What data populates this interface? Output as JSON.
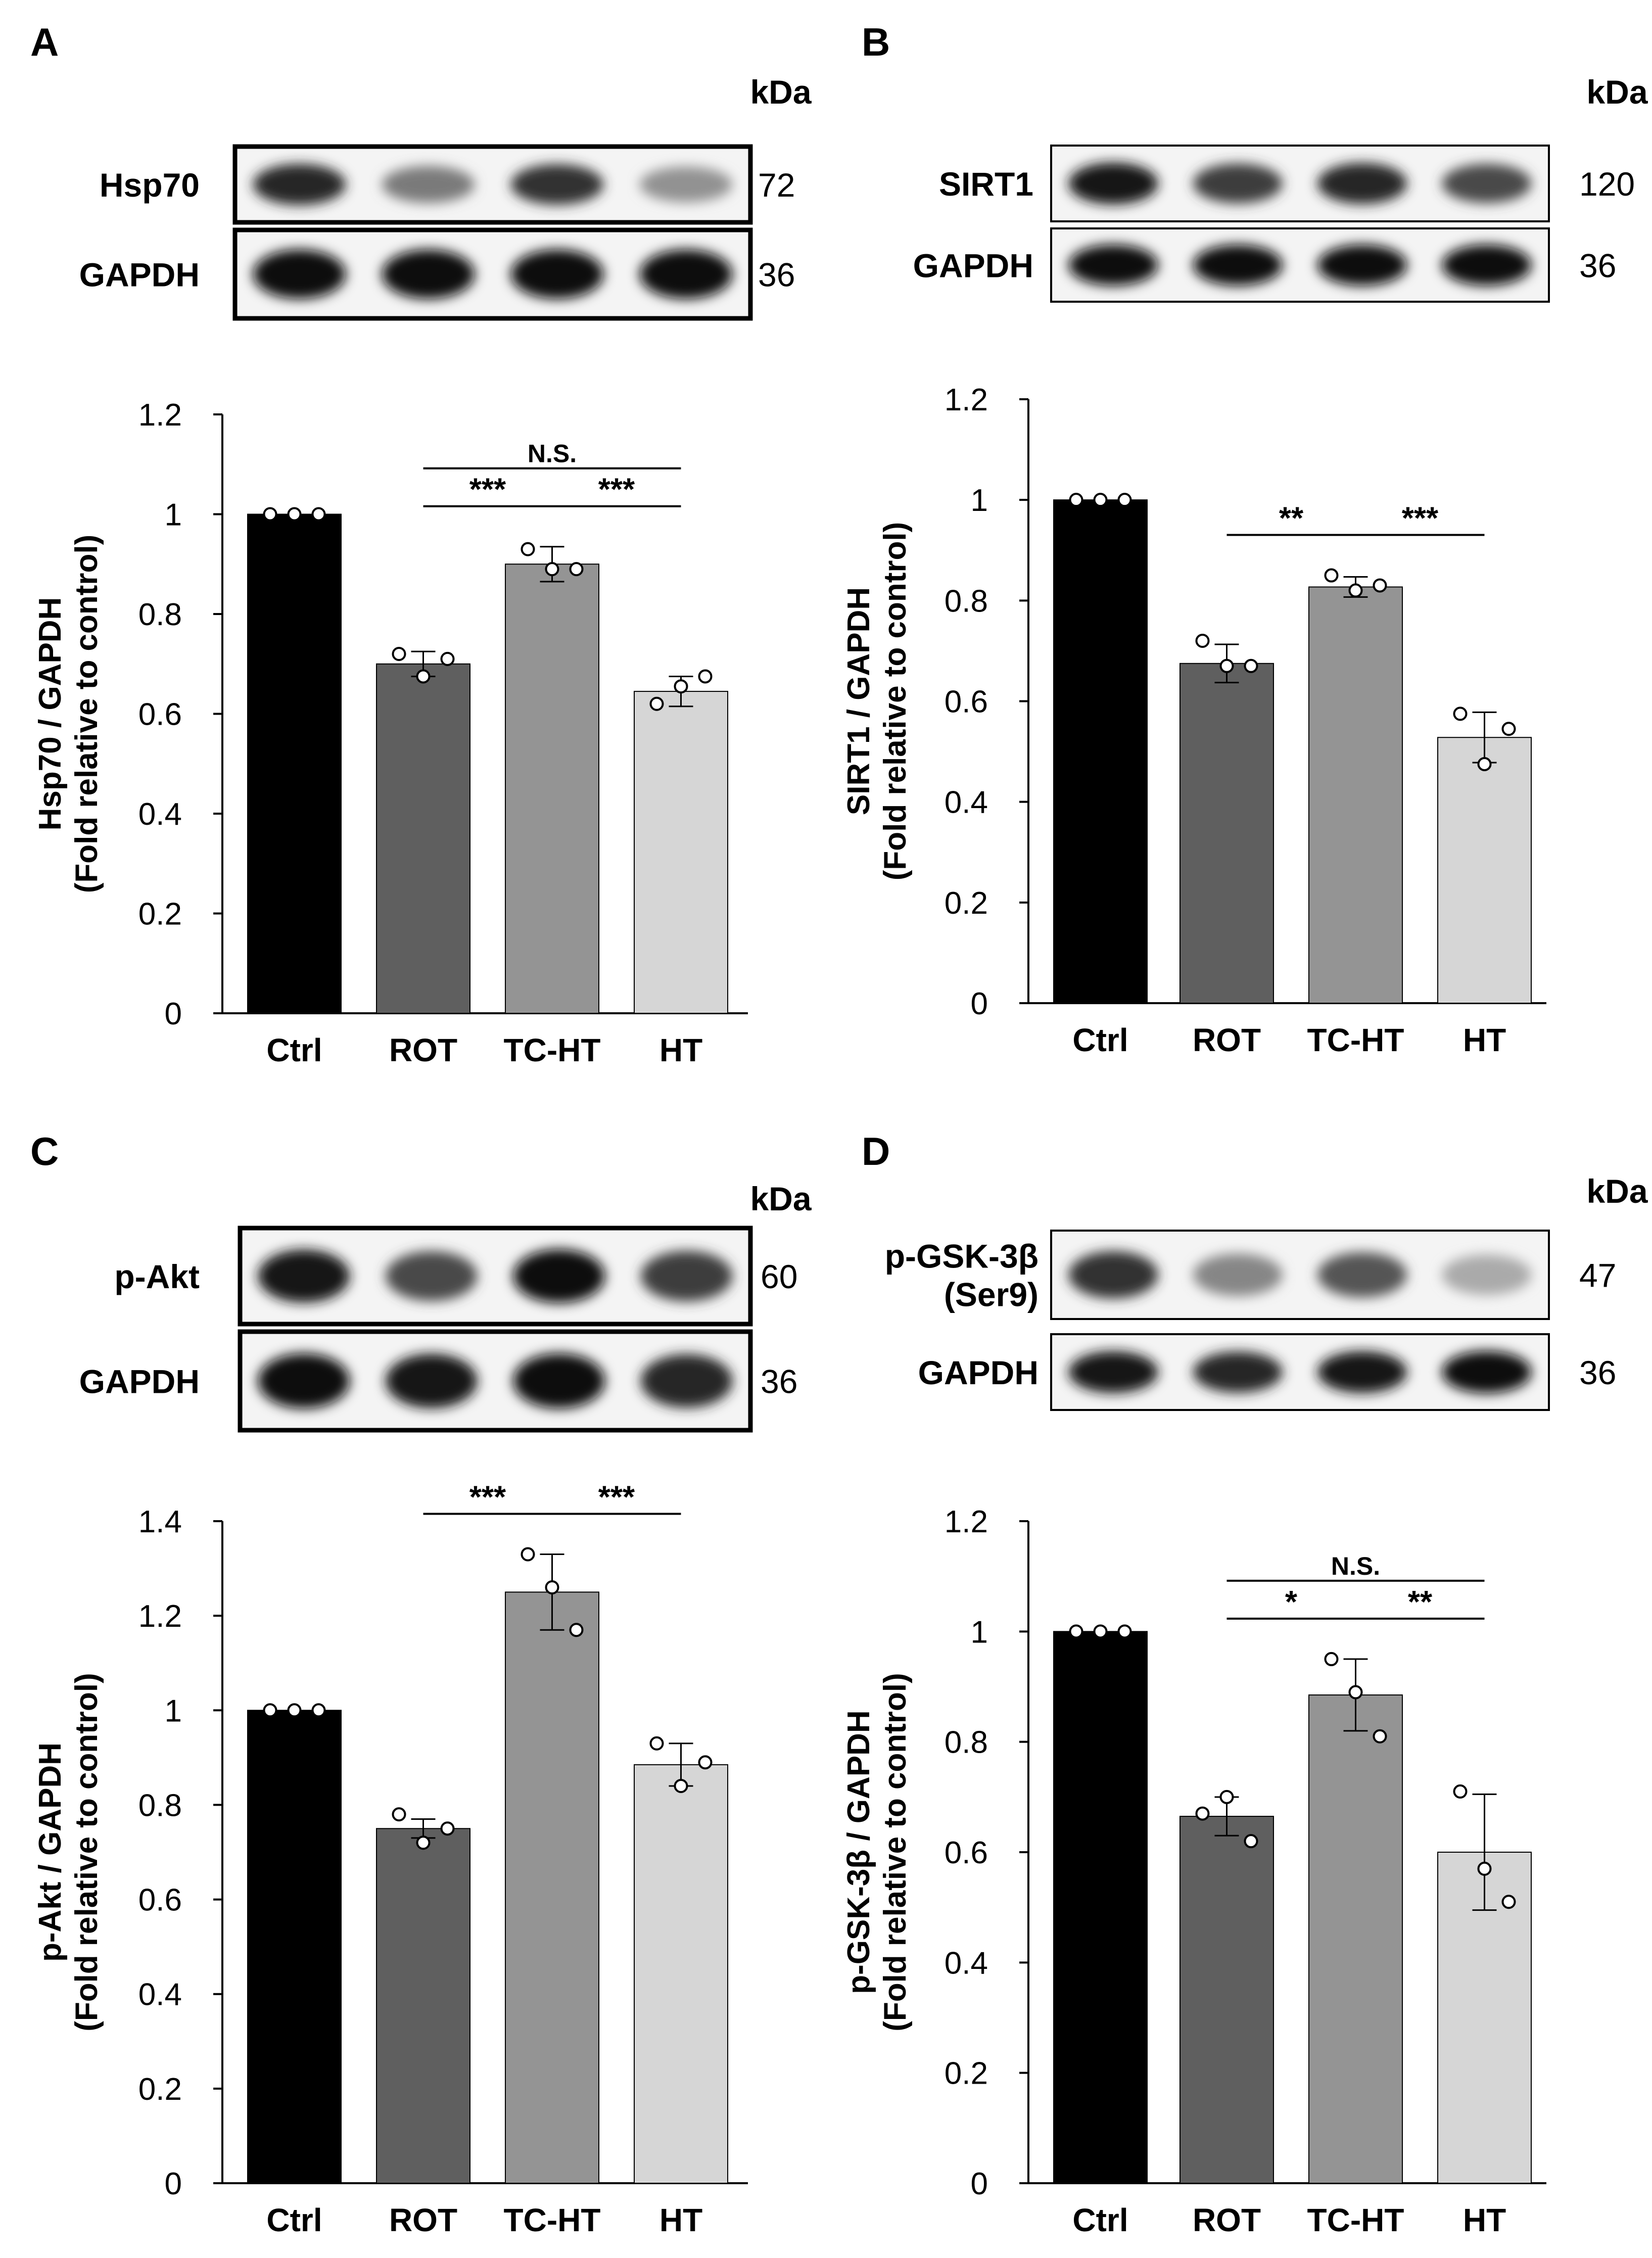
{
  "figure": {
    "units_label": "kDa"
  },
  "panels": [
    {
      "label": "A",
      "blots": [
        {
          "protein": "Hsp70",
          "kda": "72",
          "band_intensities": [
            0.9,
            0.55,
            0.85,
            0.45
          ]
        },
        {
          "protein": "GAPDH",
          "kda": "36",
          "band_intensities": [
            1.0,
            1.0,
            1.0,
            1.0
          ]
        }
      ],
      "ylabel_line1": "Hsp70 / GAPDH",
      "ylabel_line2": "(Fold relative to control)",
      "yticks": [
        "0",
        "0.2",
        "0.4",
        "0.6",
        "0.8",
        "1",
        "1.2"
      ],
      "significance": [
        {
          "from": 1,
          "to": 2,
          "label": "***"
        },
        {
          "from": 2,
          "to": 3,
          "label": "***"
        },
        {
          "from": 1,
          "to": 3,
          "label": "N.S."
        }
      ]
    },
    {
      "label": "B",
      "blots": [
        {
          "protein": "SIRT1",
          "kda": "120",
          "band_intensities": [
            0.95,
            0.8,
            0.9,
            0.75
          ]
        },
        {
          "protein": "GAPDH",
          "kda": "36",
          "band_intensities": [
            1.0,
            1.0,
            1.0,
            1.0
          ]
        }
      ],
      "ylabel_line1": "SIRT1 / GAPDH",
      "ylabel_line2": "(Fold relative to control)",
      "yticks": [
        "0",
        "0.2",
        "0.4",
        "0.6",
        "0.8",
        "1",
        "1.2"
      ],
      "significance": [
        {
          "from": 1,
          "to": 2,
          "label": "**"
        },
        {
          "from": 2,
          "to": 3,
          "label": "***"
        }
      ]
    },
    {
      "label": "C",
      "blots": [
        {
          "protein": "p-Akt",
          "kda": "60",
          "band_intensities": [
            0.95,
            0.75,
            1.0,
            0.8
          ]
        },
        {
          "protein": "GAPDH",
          "kda": "36",
          "band_intensities": [
            1.0,
            0.95,
            1.0,
            0.9
          ]
        }
      ],
      "ylabel_line1": "p-Akt / GAPDH",
      "ylabel_line2": "(Fold relative to control)",
      "yticks": [
        "0",
        "0.2",
        "0.4",
        "0.6",
        "0.8",
        "1",
        "1.2",
        "1.4"
      ],
      "significance": [
        {
          "from": 1,
          "to": 2,
          "label": "***"
        },
        {
          "from": 2,
          "to": 3,
          "label": "***"
        }
      ]
    },
    {
      "label": "D",
      "blots": [
        {
          "protein_line1": "p-GSK-3β",
          "protein_line2": "(Ser9)",
          "kda": "47",
          "band_intensities": [
            0.85,
            0.5,
            0.7,
            0.35
          ]
        },
        {
          "protein": "GAPDH",
          "kda": "36",
          "band_intensities": [
            0.95,
            0.9,
            0.95,
            1.0
          ]
        }
      ],
      "ylabel_line1": "p-GSK-3β / GAPDH",
      "ylabel_line2": "(Fold relative to control)",
      "yticks": [
        "0",
        "0.2",
        "0.4",
        "0.6",
        "0.8",
        "1",
        "1.2"
      ],
      "significance": [
        {
          "from": 1,
          "to": 2,
          "label": "*"
        },
        {
          "from": 2,
          "to": 3,
          "label": "**"
        },
        {
          "from": 1,
          "to": 3,
          "label": "N.S."
        }
      ]
    }
  ],
  "colors": [
    "#000000",
    "#5f5f5f",
    "#949494",
    "#d6d6d6"
  ],
  "chart_data": [
    {
      "type": "bar",
      "categories": [
        "Ctrl",
        "ROT",
        "TC-HT",
        "HT"
      ],
      "values": [
        1.0,
        0.7,
        0.9,
        0.645
      ],
      "errors": [
        0.0,
        0.025,
        0.035,
        0.03
      ],
      "points": [
        [
          1.0,
          1.0,
          1.0
        ],
        [
          0.72,
          0.675,
          0.71
        ],
        [
          0.93,
          0.89,
          0.89
        ],
        [
          0.62,
          0.655,
          0.675
        ]
      ],
      "xlabel": "",
      "ylabel": "Hsp70 / GAPDH (Fold relative to control)",
      "ylim": [
        0,
        1.2
      ]
    },
    {
      "type": "bar",
      "categories": [
        "Ctrl",
        "ROT",
        "TC-HT",
        "HT"
      ],
      "values": [
        1.0,
        0.675,
        0.827,
        0.528
      ],
      "errors": [
        0.0,
        0.038,
        0.02,
        0.05
      ],
      "points": [
        [
          1.0,
          1.0,
          1.0
        ],
        [
          0.72,
          0.67,
          0.67
        ],
        [
          0.85,
          0.82,
          0.83
        ],
        [
          0.575,
          0.475,
          0.545
        ]
      ],
      "xlabel": "",
      "ylabel": "SIRT1 / GAPDH (Fold relative to control)",
      "ylim": [
        0,
        1.2
      ]
    },
    {
      "type": "bar",
      "categories": [
        "Ctrl",
        "ROT",
        "TC-HT",
        "HT"
      ],
      "values": [
        1.0,
        0.75,
        1.25,
        0.885
      ],
      "errors": [
        0.0,
        0.02,
        0.08,
        0.045
      ],
      "points": [
        [
          1.0,
          1.0,
          1.0
        ],
        [
          0.78,
          0.72,
          0.75
        ],
        [
          1.33,
          1.26,
          1.17
        ],
        [
          0.93,
          0.84,
          0.89
        ]
      ],
      "xlabel": "",
      "ylabel": "p-Akt / GAPDH (Fold relative to control)",
      "ylim": [
        0,
        1.4
      ]
    },
    {
      "type": "bar",
      "categories": [
        "Ctrl",
        "ROT",
        "TC-HT",
        "HT"
      ],
      "values": [
        1.0,
        0.665,
        0.885,
        0.6
      ],
      "errors": [
        0.0,
        0.035,
        0.065,
        0.105
      ],
      "points": [
        [
          1.0,
          1.0,
          1.0
        ],
        [
          0.67,
          0.7,
          0.62
        ],
        [
          0.95,
          0.89,
          0.81
        ],
        [
          0.71,
          0.57,
          0.51
        ]
      ],
      "xlabel": "",
      "ylabel": "p-GSK-3β / GAPDH (Fold relative to control)",
      "ylim": [
        0,
        1.2
      ]
    }
  ]
}
